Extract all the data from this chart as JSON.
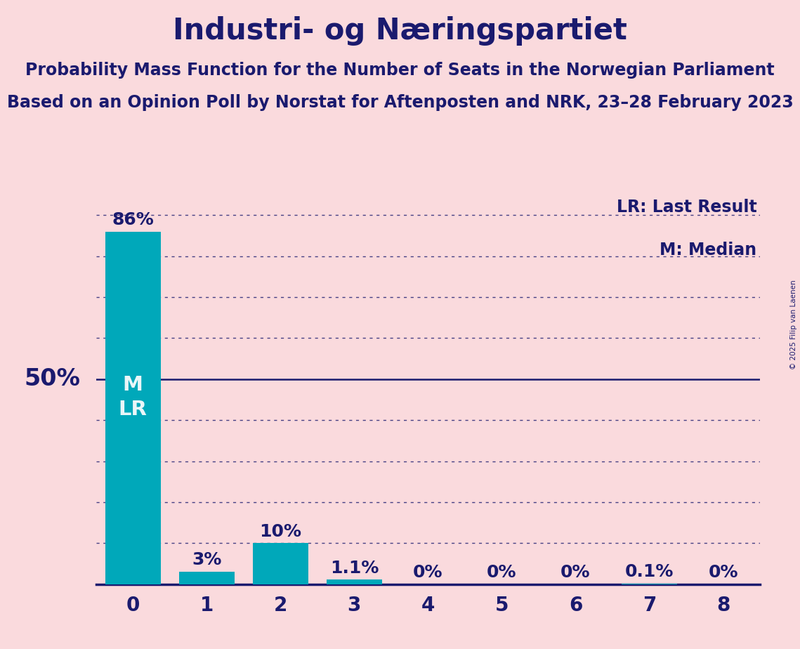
{
  "title": "Industri- og Næringspartiet",
  "subtitle1": "Probability Mass Function for the Number of Seats in the Norwegian Parliament",
  "subtitle2": "Based on an Opinion Poll by Norstat for Aftenposten and NRK, 23–28 February 2023",
  "copyright": "© 2025 Filip van Laenen",
  "categories": [
    0,
    1,
    2,
    3,
    4,
    5,
    6,
    7,
    8
  ],
  "values": [
    86.0,
    3.0,
    10.0,
    1.1,
    0.0,
    0.0,
    0.0,
    0.1,
    0.0
  ],
  "bar_labels": [
    "86%",
    "3%",
    "10%",
    "1.1%",
    "0%",
    "0%",
    "0%",
    "0.1%",
    "0%"
  ],
  "bar_color": "#00A8BA",
  "background_color": "#FADADD",
  "text_color": "#1a1a6e",
  "bar_text_color_inside": "#eaf6f8",
  "bar_text_color_outside": "#1a1a6e",
  "fifty_pct_label": "50%",
  "legend_lr": "LR: Last Result",
  "legend_m": "M: Median",
  "ylim": [
    0,
    95
  ],
  "fifty_line": 50.0,
  "grid_yticks": [
    10,
    20,
    30,
    40,
    50,
    60,
    70,
    80,
    90
  ],
  "title_fontsize": 30,
  "subtitle_fontsize": 17,
  "tick_fontsize": 20,
  "legend_fontsize": 17,
  "bar_label_fontsize": 18,
  "fifty_label_fontsize": 24,
  "ml_label_fontsize": 21
}
